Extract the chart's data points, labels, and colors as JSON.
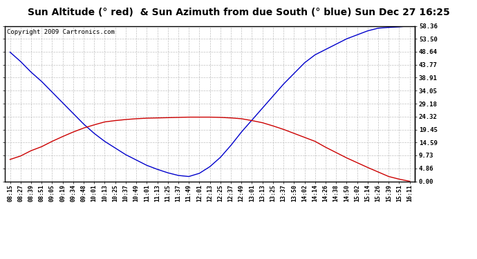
{
  "title": "Sun Altitude (° red)  & Sun Azimuth from due South (° blue) Sun Dec 27 16:25",
  "copyright": "Copyright 2009 Cartronics.com",
  "background_color": "#ffffff",
  "plot_bg_color": "#ffffff",
  "grid_color": "#b0b0b0",
  "yticks": [
    0.0,
    4.86,
    9.73,
    14.59,
    19.45,
    24.32,
    29.18,
    34.05,
    38.91,
    43.77,
    48.64,
    53.5,
    58.36
  ],
  "x_labels": [
    "08:15",
    "08:27",
    "08:39",
    "08:51",
    "09:05",
    "09:19",
    "09:34",
    "09:48",
    "10:01",
    "10:13",
    "10:25",
    "10:37",
    "10:49",
    "11:01",
    "11:13",
    "11:25",
    "11:37",
    "11:49",
    "12:01",
    "12:13",
    "12:25",
    "12:37",
    "12:49",
    "13:01",
    "13:13",
    "13:25",
    "13:37",
    "13:50",
    "14:02",
    "14:14",
    "14:26",
    "14:38",
    "14:50",
    "15:02",
    "15:14",
    "15:26",
    "15:39",
    "15:51",
    "16:11"
  ],
  "blue_data": [
    48.5,
    45.0,
    41.0,
    37.5,
    33.5,
    29.5,
    25.5,
    21.5,
    18.0,
    15.0,
    12.5,
    10.0,
    8.0,
    6.0,
    4.5,
    3.2,
    2.2,
    1.8,
    3.0,
    5.5,
    9.0,
    13.5,
    18.5,
    23.0,
    27.5,
    32.0,
    36.5,
    40.5,
    44.5,
    47.5,
    49.5,
    51.5,
    53.5,
    55.0,
    56.5,
    57.5,
    57.8,
    58.0,
    58.36
  ],
  "red_data": [
    8.2,
    9.5,
    11.5,
    13.0,
    15.0,
    16.8,
    18.5,
    20.0,
    21.2,
    22.3,
    22.8,
    23.2,
    23.5,
    23.7,
    23.8,
    23.9,
    24.0,
    24.1,
    24.1,
    24.1,
    24.0,
    23.8,
    23.5,
    22.8,
    22.0,
    20.8,
    19.5,
    18.0,
    16.5,
    15.0,
    12.8,
    10.8,
    8.8,
    7.0,
    5.2,
    3.5,
    1.8,
    0.8,
    0.0
  ],
  "blue_color": "#0000cc",
  "red_color": "#cc0000",
  "title_fontsize": 10,
  "copyright_fontsize": 6.5,
  "tick_fontsize": 6,
  "ylabel_right_fontsize": 6.5
}
